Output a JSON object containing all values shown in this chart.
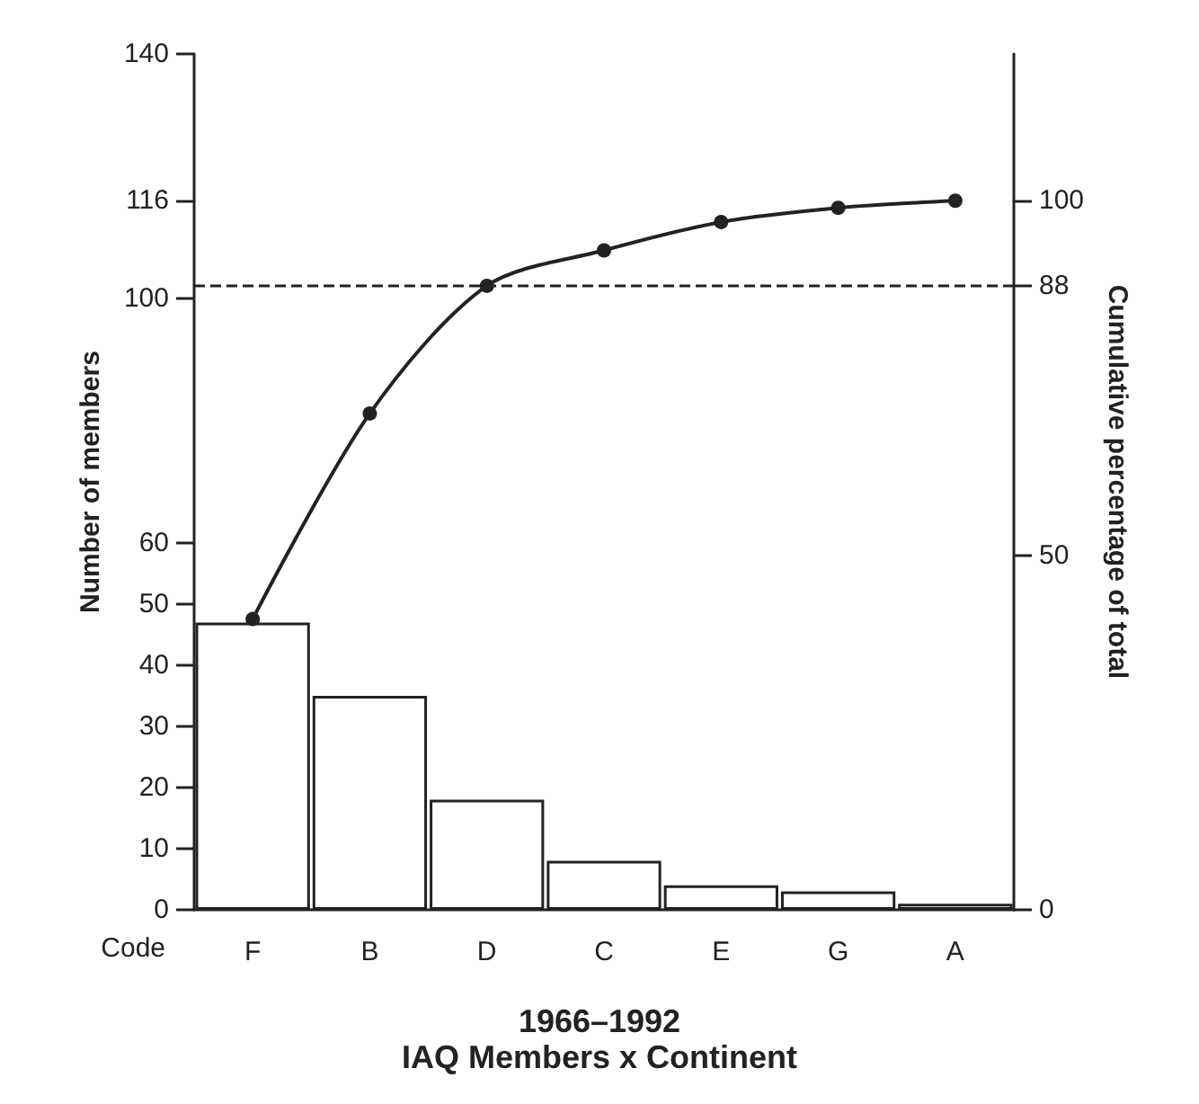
{
  "chart_data": {
    "type": "bar",
    "title": "1966–1992",
    "subtitle": "IAQ Members x Continent",
    "xlabel": "Code",
    "ylabel": "Number of members",
    "y2label": "Cumulative percentage of total",
    "categories": [
      "F",
      "B",
      "D",
      "C",
      "E",
      "G",
      "A"
    ],
    "series": [
      {
        "color": "#ffffff",
        "values": [
          47,
          35,
          18,
          8,
          4,
          3,
          1
        ]
      },
      {
        "type": "line",
        "axis": "y2",
        "color": "#222222",
        "values": [
          41,
          70,
          88,
          93,
          97,
          99,
          100
        ]
      }
    ],
    "ylim": [
      0,
      140
    ],
    "yticks": [
      0,
      10,
      20,
      30,
      40,
      50,
      60,
      100,
      116,
      140
    ],
    "y2lim": [
      0,
      120.7
    ],
    "y2ticks": [
      0,
      50,
      88,
      100
    ],
    "ref_lines": [
      {
        "axis": "y2",
        "value": 88,
        "line_style": "dashed",
        "color": "#222222"
      }
    ],
    "marker": "circle",
    "line_style": "solid",
    "grid": false
  }
}
